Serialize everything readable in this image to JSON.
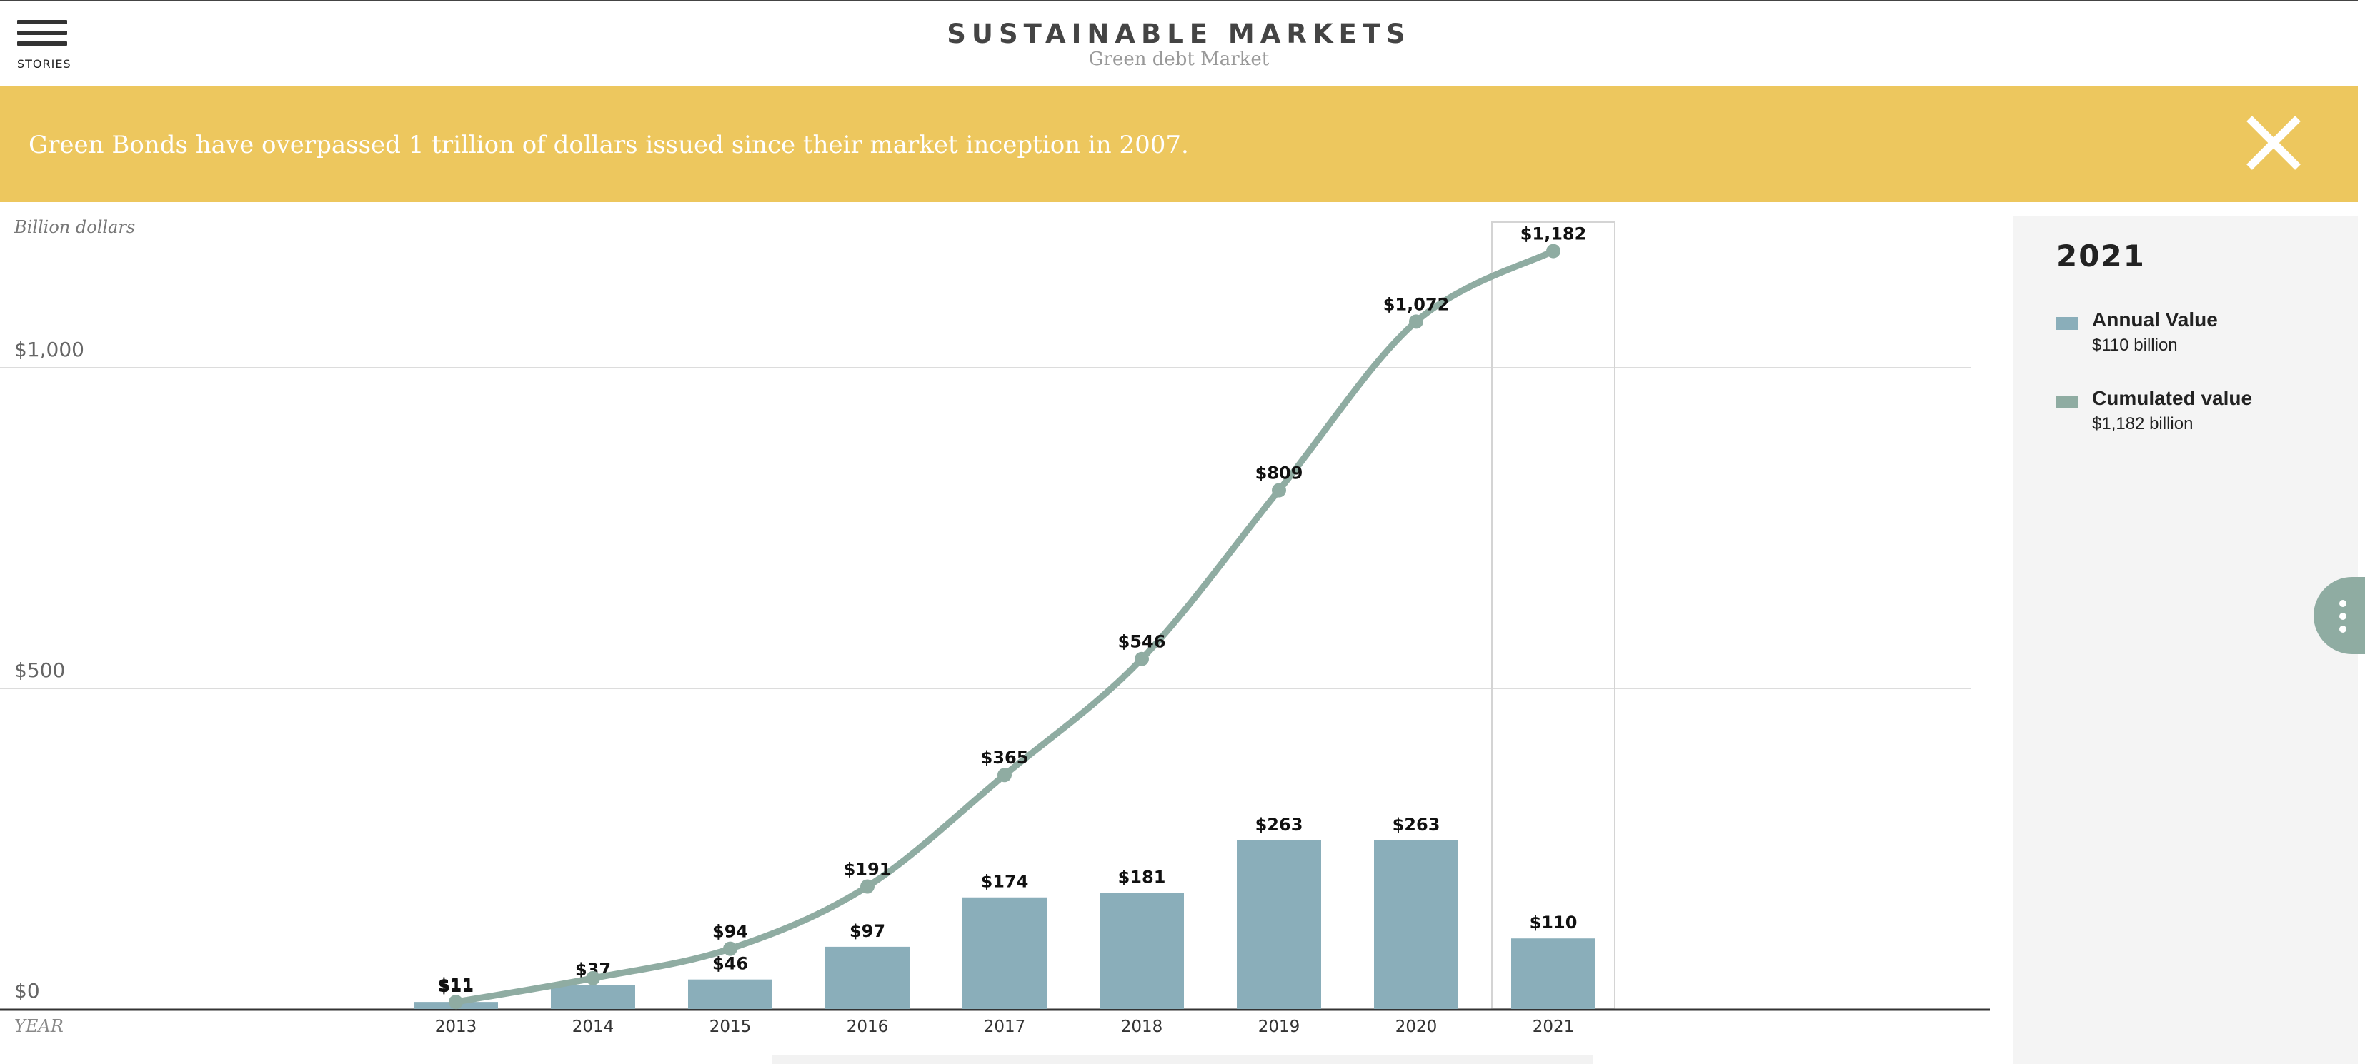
{
  "header": {
    "menu_label": "STORIES",
    "title": "SUSTAINABLE MARKETS",
    "subtitle": "Green debt Market"
  },
  "banner": {
    "text": "Green Bonds have overpassed 1 trillion of dollars issued since their market inception in 2007.",
    "color": "#edc75e"
  },
  "panel": {
    "year": "2021",
    "items": [
      {
        "name": "Annual Value",
        "value": "$110 billion",
        "color": "#8aaeba"
      },
      {
        "name": "Cumulated value",
        "value": "$1,182 billion",
        "color": "#8faca2"
      }
    ]
  },
  "chart_data": {
    "type": "bar",
    "unit_label": "Billion dollars",
    "xlabel": "YEAR",
    "y_ticks": [
      0,
      500,
      1000
    ],
    "y_tick_labels": [
      "$0",
      "$500",
      "$1,000"
    ],
    "ylim": [
      0,
      1200
    ],
    "categories": [
      "2013",
      "2014",
      "2015",
      "2016",
      "2017",
      "2018",
      "2019",
      "2020",
      "2021"
    ],
    "series": [
      {
        "name": "Annual Value",
        "kind": "bar",
        "color": "#8aaeba",
        "values": [
          11,
          37,
          46,
          97,
          174,
          181,
          263,
          263,
          110
        ],
        "labels": [
          "$11",
          "$37",
          "$46",
          "$97",
          "$174",
          "$181",
          "$263",
          "$263",
          "$110"
        ]
      },
      {
        "name": "Cumulated value",
        "kind": "line",
        "color": "#8faca2",
        "values": [
          11,
          48,
          94,
          191,
          365,
          546,
          809,
          1072,
          1182
        ],
        "labels": [
          "$11",
          "",
          "$94",
          "$191",
          "$365",
          "$546",
          "$809",
          "$1,072",
          "$1,182"
        ]
      }
    ],
    "highlight_category": "2021",
    "grid": true
  }
}
